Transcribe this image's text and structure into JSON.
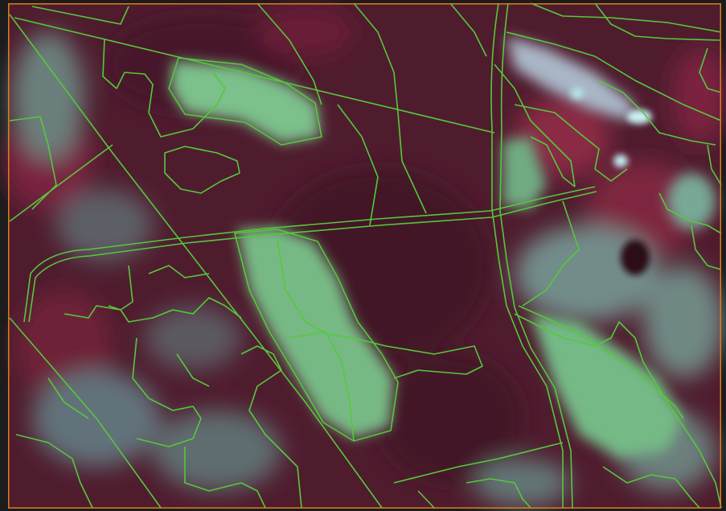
{
  "map": {
    "kind": "false-color satellite image with parcel boundary overlay",
    "colors": {
      "background": "#1c1c1c",
      "frame_border": "#e07b1a",
      "parcel_line": "#55c93a",
      "forest_dark": "#4a1a2a",
      "forest_mid": "#5c2236",
      "clearing_green": "#79bd86",
      "clearing_light": "#a8d8b4",
      "water_bright": "#c8f2f4",
      "grey_teal": "#6f8a86",
      "red_vegetation": "#8a2a45"
    },
    "legend": [],
    "labels": []
  }
}
